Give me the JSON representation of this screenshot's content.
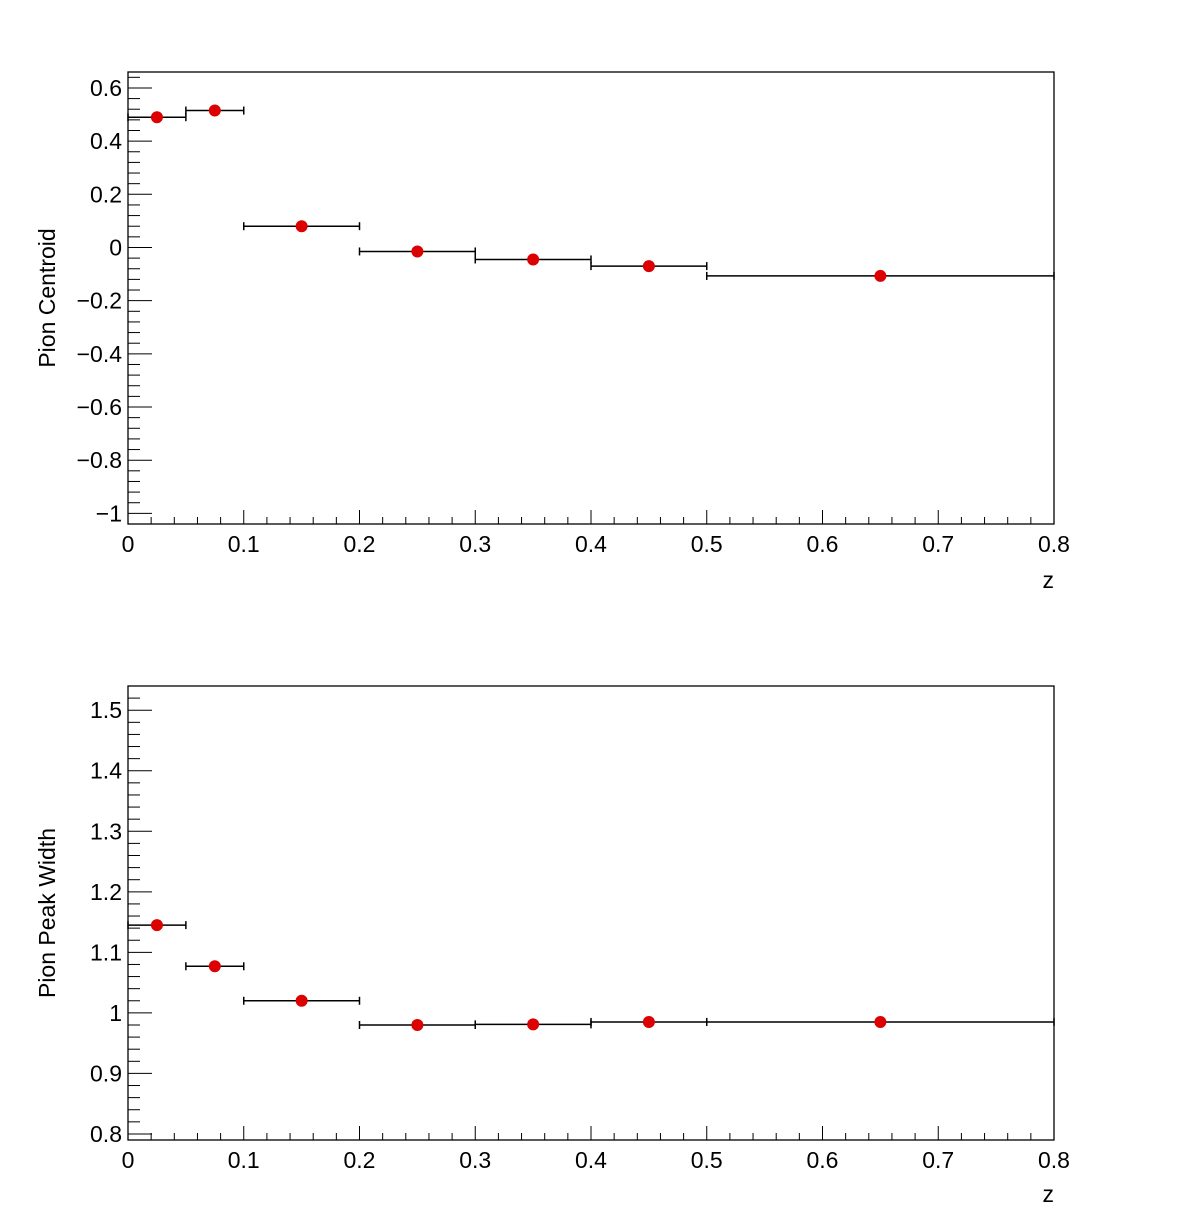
{
  "chart_data": [
    {
      "type": "scatter",
      "title": "",
      "xlabel": "z",
      "ylabel": "Pion Centroid",
      "xlim": [
        0,
        0.8
      ],
      "ylim": [
        -1.04,
        0.66
      ],
      "x_ticks": [
        "0",
        "0.1",
        "0.2",
        "0.3",
        "0.4",
        "0.5",
        "0.6",
        "0.7",
        "0.8"
      ],
      "y_ticks": [
        "−1",
        "−0.8",
        "−0.6",
        "−0.4",
        "−0.2",
        "0",
        "0.2",
        "0.4",
        "0.6"
      ],
      "grid": false,
      "marker_color": "#dd0000",
      "error_bar_color": "#000000",
      "points": [
        {
          "x": 0.025,
          "y": 0.49,
          "x_low": 0.0,
          "x_high": 0.05
        },
        {
          "x": 0.075,
          "y": 0.515,
          "x_low": 0.05,
          "x_high": 0.1
        },
        {
          "x": 0.15,
          "y": 0.08,
          "x_low": 0.1,
          "x_high": 0.2
        },
        {
          "x": 0.25,
          "y": -0.015,
          "x_low": 0.2,
          "x_high": 0.3
        },
        {
          "x": 0.35,
          "y": -0.045,
          "x_low": 0.3,
          "x_high": 0.4
        },
        {
          "x": 0.45,
          "y": -0.07,
          "x_low": 0.4,
          "x_high": 0.5
        },
        {
          "x": 0.65,
          "y": -0.107,
          "x_low": 0.5,
          "x_high": 0.8
        }
      ]
    },
    {
      "type": "scatter",
      "title": "",
      "xlabel": "z",
      "ylabel": "Pion Peak Width",
      "xlim": [
        0,
        0.8
      ],
      "ylim": [
        0.79,
        1.54
      ],
      "x_ticks": [
        "0",
        "0.1",
        "0.2",
        "0.3",
        "0.4",
        "0.5",
        "0.6",
        "0.7",
        "0.8"
      ],
      "y_ticks": [
        "0.8",
        "0.9",
        "1",
        "1.1",
        "1.2",
        "1.3",
        "1.4",
        "1.5"
      ],
      "grid": false,
      "marker_color": "#dd0000",
      "error_bar_color": "#000000",
      "points": [
        {
          "x": 0.025,
          "y": 1.145,
          "x_low": 0.0,
          "x_high": 0.05
        },
        {
          "x": 0.075,
          "y": 1.077,
          "x_low": 0.05,
          "x_high": 0.1
        },
        {
          "x": 0.15,
          "y": 1.02,
          "x_low": 0.1,
          "x_high": 0.2
        },
        {
          "x": 0.25,
          "y": 0.98,
          "x_low": 0.2,
          "x_high": 0.3
        },
        {
          "x": 0.35,
          "y": 0.981,
          "x_low": 0.3,
          "x_high": 0.4
        },
        {
          "x": 0.45,
          "y": 0.985,
          "x_low": 0.4,
          "x_high": 0.5
        },
        {
          "x": 0.65,
          "y": 0.985,
          "x_low": 0.5,
          "x_high": 0.8
        }
      ]
    }
  ]
}
